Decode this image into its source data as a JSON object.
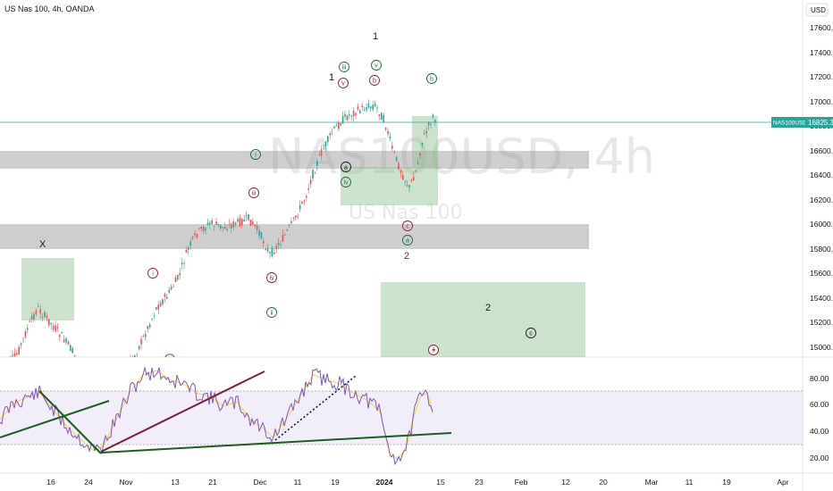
{
  "header": {
    "symbol_title": "US Nas 100, 4h, OANDA",
    "currency_button": "USD"
  },
  "watermark": {
    "symbol": "NAS100USD, 4h",
    "description": "US Nas 100"
  },
  "price_axis": {
    "ticks": [
      "17600.0",
      "17400.0",
      "17200.0",
      "17000.0",
      "16800.0",
      "16600.0",
      "16400.0",
      "16200.0",
      "16000.0",
      "15800.0",
      "15600.0",
      "15400.0",
      "15200.0",
      "15000.0"
    ],
    "last_price_symbol": "NAS100USD",
    "last_price_value": "16825.3"
  },
  "rsi_axis": {
    "ticks": [
      "80.00",
      "60.00",
      "40.00",
      "20.00"
    ]
  },
  "time_axis": {
    "labels": [
      "16",
      "24",
      "Nov",
      "13",
      "21",
      "Dec",
      "11",
      "19",
      "2024",
      "15",
      "23",
      "Feb",
      "12",
      "20",
      "Mar",
      "11",
      "19",
      "Apr"
    ]
  },
  "wave_labels": {
    "big": [
      "X",
      "1",
      "1",
      "2",
      "2"
    ],
    "circled": [
      "iii",
      "v",
      "v",
      "b",
      "b",
      "i",
      "a",
      "iv",
      "iii",
      "c",
      "a",
      "i",
      "iv",
      "ii",
      "c"
    ]
  },
  "colors": {
    "zone_gray": "#9e9e9e",
    "zone_green": "#8fbf8f",
    "rsi_band": "#7e57c2",
    "rsi_line": "#7e57c2",
    "rsi_ma": "#f4d33a",
    "last_price": "#26a69a",
    "trend_dark_green": "#1b5e20",
    "trend_maroon": "#7b1f3a"
  },
  "icons": {
    "lightning": "lightning-icon"
  }
}
